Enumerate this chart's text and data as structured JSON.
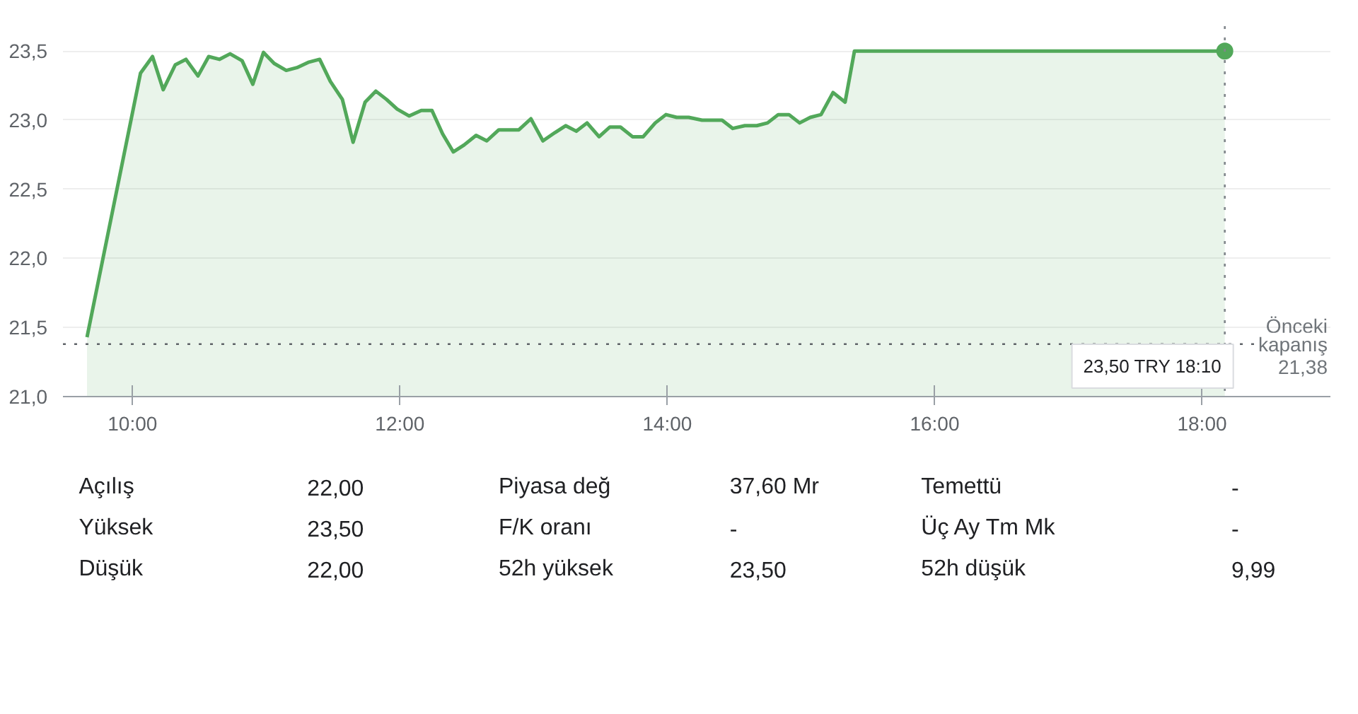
{
  "chart_data": {
    "type": "area",
    "x": [
      9.66,
      10.06,
      10.15,
      10.23,
      10.32,
      10.4,
      10.49,
      10.57,
      10.65,
      10.73,
      10.82,
      10.9,
      10.98,
      11.06,
      11.15,
      11.23,
      11.32,
      11.4,
      11.48,
      11.57,
      11.65,
      11.74,
      11.82,
      11.9,
      11.98,
      12.07,
      12.16,
      12.24,
      12.32,
      12.4,
      12.48,
      12.57,
      12.65,
      12.74,
      12.89,
      12.98,
      13.07,
      13.16,
      13.24,
      13.32,
      13.4,
      13.49,
      13.57,
      13.65,
      13.74,
      13.82,
      13.91,
      13.99,
      14.07,
      14.16,
      14.26,
      14.41,
      14.49,
      14.58,
      14.67,
      14.75,
      14.83,
      14.91,
      14.99,
      15.07,
      15.15,
      15.24,
      15.33,
      15.4,
      18.17
    ],
    "series": [
      {
        "color": "#52a85a",
        "values": [
          21.43,
          23.34,
          23.46,
          23.22,
          23.4,
          23.44,
          23.32,
          23.46,
          23.44,
          23.48,
          23.43,
          23.26,
          23.49,
          23.41,
          23.36,
          23.38,
          23.42,
          23.44,
          23.28,
          23.15,
          22.84,
          23.13,
          23.21,
          23.15,
          23.08,
          23.03,
          23.07,
          23.07,
          22.9,
          22.77,
          22.82,
          22.89,
          22.85,
          22.93,
          22.93,
          23.01,
          22.85,
          22.91,
          22.96,
          22.92,
          22.98,
          22.88,
          22.95,
          22.95,
          22.88,
          22.88,
          22.98,
          23.04,
          23.02,
          23.02,
          23.0,
          23.0,
          22.94,
          22.96,
          22.96,
          22.98,
          23.04,
          23.04,
          22.98,
          23.02,
          23.04,
          23.2,
          23.13,
          23.5,
          23.5
        ]
      }
    ],
    "xlim": [
      9.48,
      18.96
    ],
    "ylim": [
      21.0,
      23.68
    ],
    "xticks": [
      {
        "value": 10,
        "label": "10:00"
      },
      {
        "value": 12,
        "label": "12:00"
      },
      {
        "value": 14,
        "label": "14:00"
      },
      {
        "value": 16,
        "label": "16:00"
      },
      {
        "value": 18,
        "label": "18:00"
      }
    ],
    "yticks": [
      {
        "value": 21.0,
        "label": "21,0"
      },
      {
        "value": 21.5,
        "label": "21,5"
      },
      {
        "value": 22.0,
        "label": "22,0"
      },
      {
        "value": 22.5,
        "label": "22,5"
      },
      {
        "value": 23.0,
        "label": "23,0"
      },
      {
        "value": 23.5,
        "label": "23,5"
      }
    ],
    "grid": "y",
    "marker": "none",
    "line_style": "solid",
    "ref_lines": [
      {
        "axis": "y",
        "value": 21.38,
        "label": "Önceki kapanış 21,38",
        "line_style": "dotted",
        "color": "#5f6368"
      },
      {
        "axis": "x",
        "value": 18.17,
        "label": null,
        "line_style": "dotted",
        "color": "#80868b"
      }
    ],
    "annotations": [
      "23,50 TRY 18:10",
      "Açılış",
      "22,00",
      "Piyasa değ",
      "37,60 Mr",
      "Temettü",
      "-",
      "Yüksek",
      "23,50",
      "F/K oranı",
      "-",
      "Üç Ay Tm Mk",
      "-",
      "Düşük",
      "22,00",
      "52h yüksek",
      "23,50",
      "52h düşük",
      "9,99"
    ]
  }
}
